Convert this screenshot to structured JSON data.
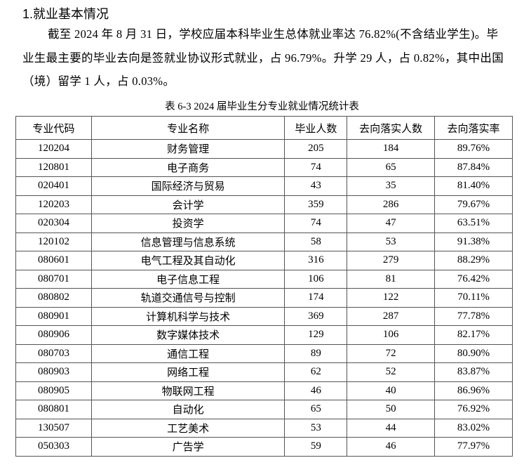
{
  "heading": "1.就业基本情况",
  "paragraph": "截至 2024 年 8 月 31 日，学校应届本科毕业生总体就业率达 76.82%(不含结业学生)。毕业生最主要的毕业去向是签就业协议形式就业，占 96.79%。升学 29 人，占 0.82%，其中出国（境）留学 1 人，占 0.03%。",
  "table": {
    "caption": "表 6-3 2024 届毕业生分专业就业情况统计表",
    "headers": [
      "专业代码",
      "专业名称",
      "毕业人数",
      "去向落实人数",
      "去向落实率"
    ],
    "rows": [
      [
        "120204",
        "财务管理",
        "205",
        "184",
        "89.76%"
      ],
      [
        "120801",
        "电子商务",
        "74",
        "65",
        "87.84%"
      ],
      [
        "020401",
        "国际经济与贸易",
        "43",
        "35",
        "81.40%"
      ],
      [
        "120203",
        "会计学",
        "359",
        "286",
        "79.67%"
      ],
      [
        "020304",
        "投资学",
        "74",
        "47",
        "63.51%"
      ],
      [
        "120102",
        "信息管理与信息系统",
        "58",
        "53",
        "91.38%"
      ],
      [
        "080601",
        "电气工程及其自动化",
        "316",
        "279",
        "88.29%"
      ],
      [
        "080701",
        "电子信息工程",
        "106",
        "81",
        "76.42%"
      ],
      [
        "080802",
        "轨道交通信号与控制",
        "174",
        "122",
        "70.11%"
      ],
      [
        "080901",
        "计算机科学与技术",
        "369",
        "287",
        "77.78%"
      ],
      [
        "080906",
        "数字媒体技术",
        "129",
        "106",
        "82.17%"
      ],
      [
        "080703",
        "通信工程",
        "89",
        "72",
        "80.90%"
      ],
      [
        "080903",
        "网络工程",
        "62",
        "52",
        "83.87%"
      ],
      [
        "080905",
        "物联网工程",
        "46",
        "40",
        "86.96%"
      ],
      [
        "080801",
        "自动化",
        "65",
        "50",
        "76.92%"
      ],
      [
        "130507",
        "工艺美术",
        "53",
        "44",
        "83.02%"
      ],
      [
        "050303",
        "广告学",
        "59",
        "46",
        "77.97%"
      ]
    ]
  }
}
